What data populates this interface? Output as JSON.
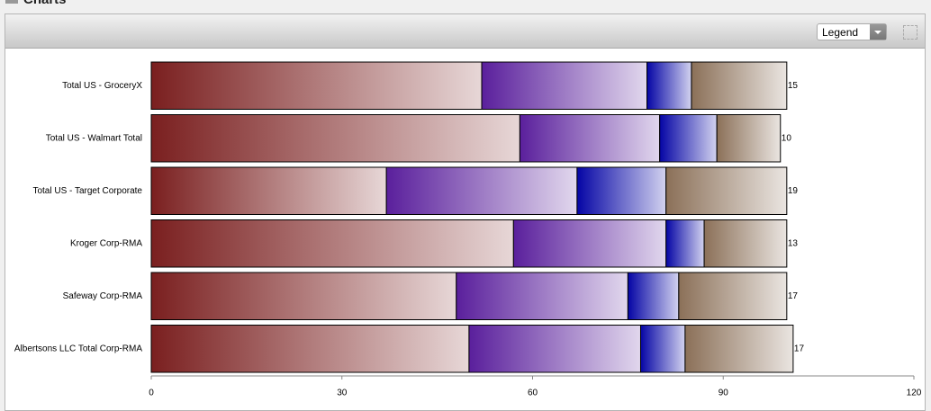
{
  "panel_title": "Charts",
  "legend_button": "Legend",
  "chart_data": {
    "type": "stacked-bar-horizontal",
    "categories": [
      "Total US - GroceryX",
      "Total US - Walmart Total",
      "Total US - Target Corporate",
      "Kroger Corp-RMA",
      "Safeway Corp-RMA",
      "Albertsons LLC Total Corp-RMA"
    ],
    "series": [
      {
        "color": "#7a1f1f",
        "values": [
          52,
          58,
          37,
          57,
          48,
          50
        ]
      },
      {
        "color": "#5a1f9c",
        "values": [
          26,
          22,
          30,
          24,
          27,
          27
        ]
      },
      {
        "color": "#0505a5",
        "values": [
          7,
          9,
          14,
          6,
          8,
          7
        ]
      },
      {
        "color": "#8b7058",
        "values": [
          15,
          10,
          19,
          13,
          17,
          17
        ]
      }
    ],
    "xlim": [
      0,
      120
    ],
    "xticks": [
      0,
      30,
      60,
      90,
      120
    ],
    "grid": false
  }
}
